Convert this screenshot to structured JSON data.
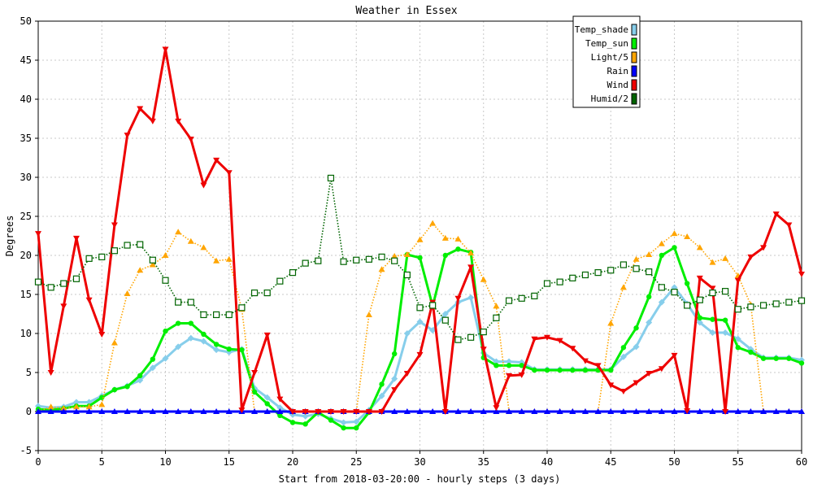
{
  "chart_data": {
    "type": "line",
    "title": "Weather in Essex",
    "xlabel": "Start from 2018-03-20:00 - hourly steps (3 days)",
    "ylabel": "Degrees",
    "xlim": [
      0,
      60
    ],
    "ylim": [
      -5,
      50
    ],
    "xticks": [
      0,
      5,
      10,
      15,
      20,
      25,
      30,
      35,
      40,
      45,
      50,
      55,
      60
    ],
    "yticks": [
      -5,
      0,
      5,
      10,
      15,
      20,
      25,
      30,
      35,
      40,
      45,
      50
    ],
    "grid": true,
    "legend_position": "top-right",
    "series": [
      {
        "name": "Temp_shade",
        "color": "#87ceeb",
        "line": "solid",
        "marker": "diamond",
        "x": [
          0,
          1,
          2,
          3,
          4,
          5,
          6,
          7,
          8,
          9,
          10,
          11,
          12,
          13,
          14,
          15,
          16,
          17,
          18,
          19,
          20,
          21,
          22,
          23,
          24,
          25,
          26,
          27,
          28,
          29,
          30,
          31,
          32,
          33,
          34,
          35,
          36,
          37,
          38,
          39,
          40,
          41,
          42,
          43,
          44,
          45,
          46,
          47,
          48,
          49,
          50,
          51,
          52,
          53,
          54,
          55,
          56,
          57,
          58,
          59,
          60
        ],
        "y": [
          0.7,
          0.5,
          0.6,
          1.2,
          1.2,
          2.0,
          2.8,
          3.3,
          4.0,
          5.6,
          6.8,
          8.3,
          9.4,
          9.0,
          7.9,
          7.6,
          8.0,
          3.0,
          1.8,
          0.5,
          -0.4,
          -0.6,
          -0.3,
          -0.9,
          -1.4,
          -1.3,
          0.2,
          2.0,
          4.2,
          10.0,
          11.5,
          10.4,
          12.5,
          14.0,
          14.6,
          7.5,
          6.4,
          6.4,
          6.3,
          5.4,
          5.4,
          5.4,
          5.4,
          5.4,
          5.4,
          5.4,
          7.0,
          8.3,
          11.4,
          14.0,
          15.9,
          13.8,
          11.4,
          10.1,
          10.1,
          9.3,
          8.0,
          6.9,
          6.9,
          6.9,
          6.6
        ]
      },
      {
        "name": "Temp_sun",
        "color": "#00ee00",
        "line": "solid",
        "marker": "circle",
        "x": [
          0,
          1,
          2,
          3,
          4,
          5,
          6,
          7,
          8,
          9,
          10,
          11,
          12,
          13,
          14,
          15,
          16,
          17,
          18,
          19,
          20,
          21,
          22,
          23,
          24,
          25,
          26,
          27,
          28,
          29,
          30,
          31,
          32,
          33,
          34,
          35,
          36,
          37,
          38,
          39,
          40,
          41,
          42,
          43,
          44,
          45,
          46,
          47,
          48,
          49,
          50,
          51,
          52,
          53,
          54,
          55,
          56,
          57,
          58,
          59,
          60
        ],
        "y": [
          0.3,
          0.2,
          0.4,
          0.7,
          0.7,
          1.8,
          2.8,
          3.2,
          4.6,
          6.7,
          10.3,
          11.3,
          11.3,
          9.9,
          8.6,
          8.0,
          7.9,
          2.5,
          1.0,
          -0.5,
          -1.4,
          -1.6,
          -0.1,
          -1.1,
          -2.1,
          -2.1,
          -0.1,
          3.5,
          7.4,
          20.1,
          19.7,
          13.5,
          20.0,
          20.8,
          20.4,
          6.9,
          5.9,
          5.9,
          5.9,
          5.3,
          5.3,
          5.3,
          5.3,
          5.3,
          5.3,
          5.3,
          8.2,
          10.7,
          14.7,
          20.0,
          21.0,
          16.4,
          12.0,
          11.8,
          11.7,
          8.2,
          7.6,
          6.8,
          6.8,
          6.8,
          6.2
        ]
      },
      {
        "name": "Light/5",
        "color": "#ffa500",
        "line": "dotted",
        "marker": "triangle-up",
        "x": [
          0,
          1,
          2,
          3,
          4,
          5,
          6,
          7,
          8,
          9,
          10,
          11,
          12,
          13,
          14,
          15,
          16,
          17,
          18,
          19,
          20,
          21,
          22,
          23,
          24,
          25,
          26,
          27,
          28,
          29,
          30,
          31,
          32,
          33,
          34,
          35,
          36,
          37,
          38,
          39,
          40,
          41,
          42,
          43,
          44,
          45,
          46,
          47,
          48,
          49,
          50,
          51,
          52,
          53,
          54,
          55,
          56,
          57,
          58,
          59,
          60
        ],
        "y": [
          0,
          0.6,
          0.4,
          0.6,
          0.6,
          0.9,
          8.8,
          15.1,
          18.1,
          18.8,
          20.0,
          23.0,
          21.8,
          21.0,
          19.3,
          19.5,
          13.1,
          0,
          0,
          0,
          0,
          0,
          0,
          0,
          0,
          0,
          12.4,
          18.2,
          19.9,
          20.1,
          22.0,
          24.1,
          22.2,
          22.1,
          20.3,
          16.9,
          13.5,
          0,
          0,
          0,
          0,
          0,
          0,
          0,
          0,
          11.3,
          15.9,
          19.5,
          20.1,
          21.5,
          22.8,
          22.4,
          21.0,
          19.1,
          19.6,
          17.4,
          13.7,
          0,
          0,
          0,
          0
        ]
      },
      {
        "name": "Rain",
        "color": "#0000ff",
        "line": "solid",
        "marker": "triangle-up",
        "x": [
          0,
          1,
          2,
          3,
          4,
          5,
          6,
          7,
          8,
          9,
          10,
          11,
          12,
          13,
          14,
          15,
          16,
          17,
          18,
          19,
          20,
          21,
          22,
          23,
          24,
          25,
          26,
          27,
          28,
          29,
          30,
          31,
          32,
          33,
          34,
          35,
          36,
          37,
          38,
          39,
          40,
          41,
          42,
          43,
          44,
          45,
          46,
          47,
          48,
          49,
          50,
          51,
          52,
          53,
          54,
          55,
          56,
          57,
          58,
          59,
          60
        ],
        "y": [
          0,
          0,
          0,
          0,
          0,
          0,
          0,
          0,
          0,
          0,
          0,
          0,
          0,
          0,
          0,
          0,
          0,
          0,
          0,
          0,
          0,
          0,
          0,
          0,
          0,
          0,
          0,
          0,
          0,
          0,
          0,
          0,
          0,
          0,
          0,
          0,
          0,
          0,
          0,
          0,
          0,
          0,
          0,
          0,
          0,
          0,
          0,
          0,
          0,
          0,
          0,
          0,
          0,
          0,
          0,
          0,
          0,
          0,
          0,
          0,
          0
        ]
      },
      {
        "name": "Wind",
        "color": "#ee0000",
        "line": "solid",
        "marker": "triangle-down",
        "x": [
          0,
          1,
          2,
          3,
          4,
          5,
          6,
          7,
          8,
          9,
          10,
          11,
          12,
          13,
          14,
          15,
          16,
          17,
          18,
          19,
          20,
          21,
          22,
          23,
          24,
          25,
          26,
          27,
          28,
          29,
          30,
          31,
          32,
          33,
          34,
          35,
          36,
          37,
          38,
          39,
          40,
          41,
          42,
          43,
          44,
          45,
          46,
          47,
          48,
          49,
          50,
          51,
          52,
          53,
          54,
          55,
          56,
          57,
          58,
          59,
          60
        ],
        "y": [
          22.8,
          5.0,
          13.5,
          22.2,
          14.3,
          9.9,
          23.9,
          35.4,
          38.8,
          37.2,
          46.4,
          37.2,
          34.9,
          29.0,
          32.2,
          30.6,
          0.2,
          5.0,
          9.8,
          1.6,
          0,
          0,
          0,
          0,
          0,
          0,
          0,
          0,
          2.8,
          4.9,
          7.3,
          14.0,
          0,
          14.5,
          18.5,
          8.0,
          0.5,
          4.6,
          4.7,
          9.3,
          9.5,
          9.1,
          8.1,
          6.5,
          5.9,
          3.4,
          2.6,
          3.7,
          4.9,
          5.5,
          7.2,
          0.1,
          17.1,
          15.8,
          0,
          16.8,
          19.8,
          21.0,
          25.3,
          23.9,
          17.6
        ]
      },
      {
        "name": "Humid/2",
        "color": "#006400",
        "line": "dotted",
        "marker": "square",
        "x": [
          0,
          1,
          2,
          3,
          4,
          5,
          6,
          7,
          8,
          9,
          10,
          11,
          12,
          13,
          14,
          15,
          16,
          17,
          18,
          19,
          20,
          21,
          22,
          23,
          24,
          25,
          26,
          27,
          28,
          29,
          30,
          31,
          32,
          33,
          34,
          35,
          36,
          37,
          38,
          39,
          40,
          41,
          42,
          43,
          44,
          45,
          46,
          47,
          48,
          49,
          50,
          51,
          52,
          53,
          54,
          55,
          56,
          57,
          58,
          59,
          60
        ],
        "y": [
          16.6,
          15.9,
          16.4,
          17.0,
          19.6,
          19.8,
          20.6,
          21.3,
          21.4,
          19.4,
          16.8,
          14.0,
          14.0,
          12.4,
          12.4,
          12.4,
          13.3,
          15.2,
          15.2,
          16.7,
          17.8,
          19.0,
          19.3,
          29.9,
          19.2,
          19.4,
          19.5,
          19.8,
          19.3,
          17.5,
          13.3,
          13.6,
          11.7,
          9.2,
          9.5,
          10.2,
          12.0,
          14.2,
          14.5,
          14.8,
          16.4,
          16.6,
          17.1,
          17.5,
          17.8,
          18.1,
          18.8,
          18.3,
          17.9,
          15.9,
          15.3,
          13.6,
          14.3,
          15.2,
          15.4,
          13.1,
          13.4,
          13.6,
          13.8,
          14.0,
          14.2
        ]
      }
    ]
  }
}
